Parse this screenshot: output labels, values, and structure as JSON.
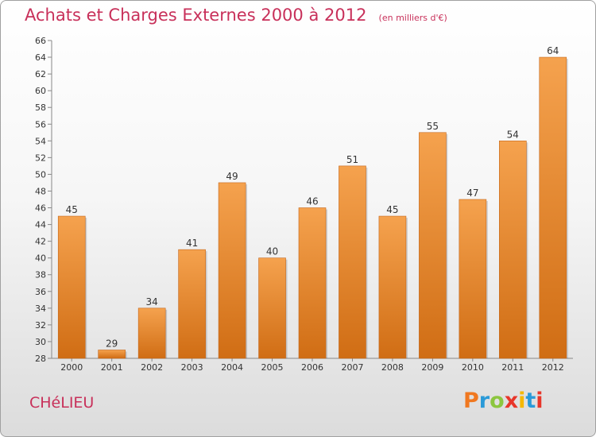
{
  "header": {
    "title": "Achats et Charges Externes 2000 à 2012",
    "unit": "(en milliers d'€)"
  },
  "footer": {
    "commune": "CHéLIEU",
    "brand": "Proxiti",
    "brand_colors": [
      "#f07820",
      "#2a9ad8",
      "#8cc63f",
      "#e8362a",
      "#f5b800",
      "#2a9ad8",
      "#e8362a"
    ]
  },
  "chart_data": {
    "type": "bar",
    "title": "Achats et Charges Externes 2000 à 2012",
    "xlabel": "",
    "ylabel": "",
    "categories": [
      "2000",
      "2001",
      "2002",
      "2003",
      "2004",
      "2005",
      "2006",
      "2007",
      "2008",
      "2009",
      "2010",
      "2011",
      "2012"
    ],
    "values": [
      45,
      29,
      34,
      41,
      49,
      40,
      46,
      51,
      45,
      55,
      47,
      54,
      64
    ],
    "ylim": [
      28,
      66
    ],
    "ytick_step": 2,
    "grid": false,
    "bar_color_top": "#f5a24e",
    "bar_color_bottom": "#d06d14"
  }
}
